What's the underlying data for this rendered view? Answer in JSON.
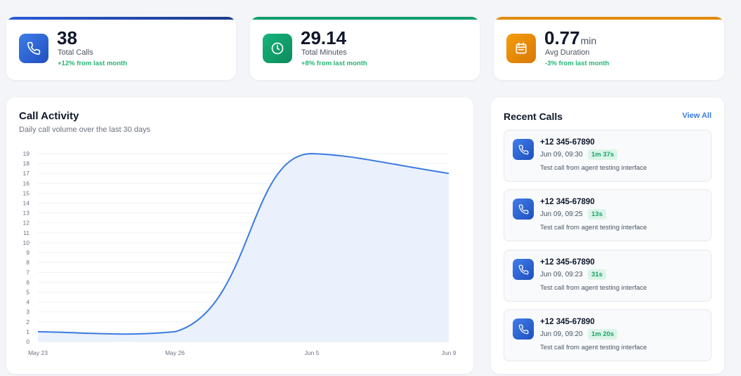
{
  "stats": [
    {
      "value": "38",
      "unit": "",
      "label": "Total Calls",
      "change": "+12% from last month",
      "accent": "#1e40af",
      "icon": "phone-icon",
      "icon_bg": "#2563eb"
    },
    {
      "value": "29.14",
      "unit": "",
      "label": "Total Minutes",
      "change": "+8% from last month",
      "accent": "#0f9d6b",
      "icon": "clock-icon",
      "icon_bg": "#10a56f"
    },
    {
      "value": "0.77",
      "unit": "min",
      "label": "Avg Duration",
      "change": "-3% from last month",
      "accent": "#e08a0c",
      "icon": "calendar-icon",
      "icon_bg": "#ef8f0b"
    }
  ],
  "activity": {
    "title": "Call Activity",
    "subtitle": "Daily call volume over the last 30 days"
  },
  "chart_data": {
    "type": "area",
    "x": [
      "May 23",
      "May 26",
      "Jun 5",
      "Jun 9"
    ],
    "values": [
      1,
      1,
      19,
      17
    ],
    "ylim": [
      0,
      19
    ],
    "yticks": [
      0,
      1,
      2,
      3,
      4,
      5,
      6,
      7,
      8,
      9,
      10,
      11,
      12,
      13,
      14,
      15,
      16,
      17,
      18,
      19
    ],
    "grid": true,
    "line_color": "#3b7be0",
    "fill_color": "#eaf1fc"
  },
  "recent": {
    "title": "Recent Calls",
    "view_all": "View All",
    "calls": [
      {
        "number": "+12 345-67890",
        "time": "Jun 09, 09:30",
        "duration": "1m 37s",
        "note": "Test call from agent testing interface"
      },
      {
        "number": "+12 345-67890",
        "time": "Jun 09, 09:25",
        "duration": "13s",
        "note": "Test call from agent testing interface"
      },
      {
        "number": "+12 345-67890",
        "time": "Jun 09, 09:23",
        "duration": "31s",
        "note": "Test call from agent testing interface"
      },
      {
        "number": "+12 345-67890",
        "time": "Jun 09, 09:20",
        "duration": "1m 20s",
        "note": "Test call from agent testing interface"
      }
    ]
  }
}
